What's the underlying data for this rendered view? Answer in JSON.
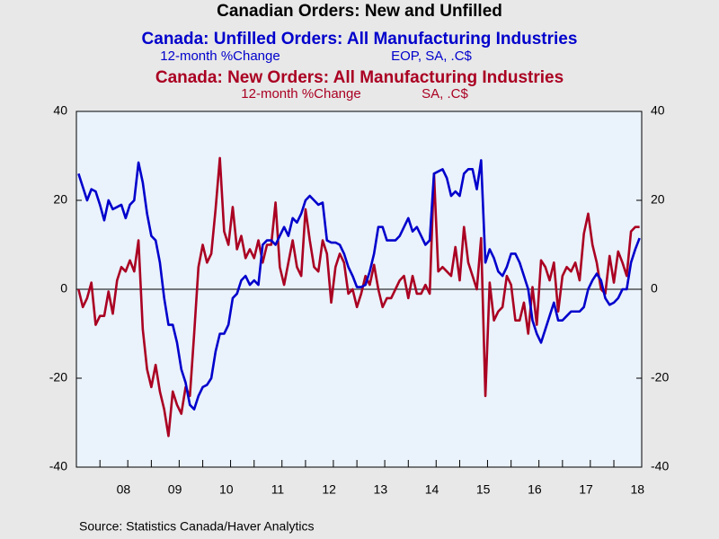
{
  "chart_data": {
    "type": "line",
    "title": "Canadian Orders: New and Unfilled",
    "source": "Source:  Statistics Canada/Haver Analytics",
    "categories": [
      null,
      null,
      null,
      null,
      null,
      null,
      null,
      null,
      null,
      null,
      null,
      "08",
      null,
      null,
      null,
      null,
      null,
      null,
      null,
      null,
      null,
      null,
      null,
      "09",
      null,
      null,
      null,
      null,
      null,
      null,
      null,
      null,
      null,
      null,
      null,
      "10",
      null,
      null,
      null,
      null,
      null,
      null,
      null,
      null,
      null,
      null,
      null,
      "11",
      null,
      null,
      null,
      null,
      null,
      null,
      null,
      null,
      null,
      null,
      null,
      "12",
      null,
      null,
      null,
      null,
      null,
      null,
      null,
      null,
      null,
      null,
      null,
      "13",
      null,
      null,
      null,
      null,
      null,
      null,
      null,
      null,
      null,
      null,
      null,
      "14",
      null,
      null,
      null,
      null,
      null,
      null,
      null,
      null,
      null,
      null,
      null,
      "15",
      null,
      null,
      null,
      null,
      null,
      null,
      null,
      null,
      null,
      null,
      null,
      "16",
      null,
      null,
      null,
      null,
      null,
      null,
      null,
      null,
      null,
      null,
      null,
      "17",
      null,
      null,
      null,
      null,
      null,
      null,
      null,
      null,
      null,
      null,
      null,
      "18"
    ],
    "series": [
      {
        "name": "Canada: Unfilled Orders: All Manufacturing Industries",
        "subtitle": [
          "12-month %Change",
          "EOP, SA, .C$"
        ],
        "color": "#0000cc",
        "values": [
          26,
          23,
          20,
          22.5,
          22,
          19,
          15.5,
          20,
          18,
          18.5,
          19,
          16,
          19,
          20,
          28.5,
          24,
          17,
          12,
          11,
          6,
          -2,
          -8,
          -8,
          -12,
          -18,
          -21,
          -26,
          -27,
          -24,
          -22,
          -21.5,
          -20,
          -14,
          -10,
          -10,
          -8,
          -2,
          -1,
          2,
          3,
          1,
          2,
          1,
          10,
          11,
          11,
          10,
          12,
          14,
          12,
          16,
          15,
          17,
          20,
          21,
          20,
          19,
          19.5,
          11,
          10.5,
          10.5,
          10,
          8,
          5,
          3,
          0.5,
          0.5,
          1,
          4,
          8,
          14,
          14,
          11,
          11,
          11,
          12,
          14,
          16,
          13,
          14,
          12,
          10,
          11,
          26,
          26.5,
          27,
          25,
          21,
          22,
          21,
          26,
          27,
          27,
          22.5,
          29,
          6,
          9,
          7,
          4,
          3,
          5,
          8,
          8,
          6,
          3,
          0,
          -7,
          -10,
          -12,
          -9,
          -6,
          -3,
          -7,
          -7,
          -6,
          -5,
          -5,
          -5,
          -4,
          0,
          2,
          3.5,
          2,
          -2,
          -3.5,
          -3,
          -2,
          0,
          0,
          6,
          9,
          11.5
        ]
      },
      {
        "name": "Canada: New Orders: All Manufacturing Industries",
        "subtitle": [
          "12-month %Change",
          "SA, .C$"
        ],
        "color": "#aa0022",
        "axis": "y2",
        "values": [
          0,
          -4,
          -2,
          1.5,
          -8,
          -6,
          -6,
          -0.5,
          -5.5,
          2,
          5,
          4,
          6.5,
          4,
          11,
          -9,
          -18,
          -22,
          -17,
          -23,
          -27,
          -33,
          -23,
          -26,
          -28,
          -22,
          -24,
          -10,
          5,
          10,
          6,
          8,
          18,
          29.5,
          13,
          10,
          18.5,
          9,
          12,
          7,
          9,
          7,
          11,
          6,
          10,
          10,
          19.5,
          5,
          1,
          6,
          11,
          5,
          3,
          18,
          11,
          5,
          4,
          11,
          8,
          -3,
          5,
          8,
          6,
          -1,
          0,
          -4,
          -1,
          3,
          1,
          5.5,
          0,
          -4,
          -2,
          -2,
          0,
          2,
          3,
          -2,
          3,
          -1,
          -1,
          1,
          -1,
          26,
          4,
          5,
          4,
          3,
          9.5,
          2,
          14,
          6,
          3,
          0,
          11.5,
          -24,
          1.5,
          -7,
          -5,
          -4,
          3,
          1,
          -7,
          -7,
          -3,
          -10,
          0.5,
          -8,
          6.5,
          5,
          2,
          6,
          -5,
          3,
          5,
          4,
          6,
          2,
          12.5,
          17,
          10,
          6,
          0,
          -1,
          7.5,
          1.5,
          8.5,
          6,
          3,
          13,
          14,
          14
        ]
      }
    ],
    "ylim": [
      -40,
      40
    ],
    "yticks": [
      -40,
      -20,
      0,
      20,
      40
    ],
    "y2lim": [
      -40,
      40
    ],
    "y2ticks": [
      -40,
      -20,
      0,
      20,
      40
    ]
  }
}
